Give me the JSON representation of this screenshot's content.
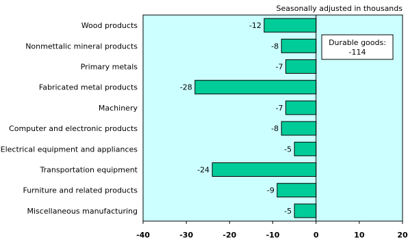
{
  "chart_data": {
    "type": "bar",
    "orientation": "horizontal",
    "subtitle": "Seasonally adjusted in thousands",
    "categories": [
      "Wood products",
      "Nonmettalic mineral products",
      "Primary metals",
      "Fabricated metal products",
      "Machinery",
      "Computer and electronic products",
      "Electrical equipment and appliances",
      "Transportation equipment",
      "Furniture and related products",
      "Miscellaneous manufacturing"
    ],
    "values": [
      -12,
      -8,
      -7,
      -28,
      -7,
      -8,
      -5,
      -24,
      -9,
      -5
    ],
    "xlim": [
      -40,
      20
    ],
    "xticks": [
      -40,
      -30,
      -20,
      -10,
      0,
      10,
      20
    ],
    "annotation": {
      "line1": "Durable goods:",
      "line2": "-114"
    },
    "grid": false,
    "colors": {
      "bar": "#00cc99",
      "plot_background": "#ccffff",
      "border": "#000000"
    }
  }
}
